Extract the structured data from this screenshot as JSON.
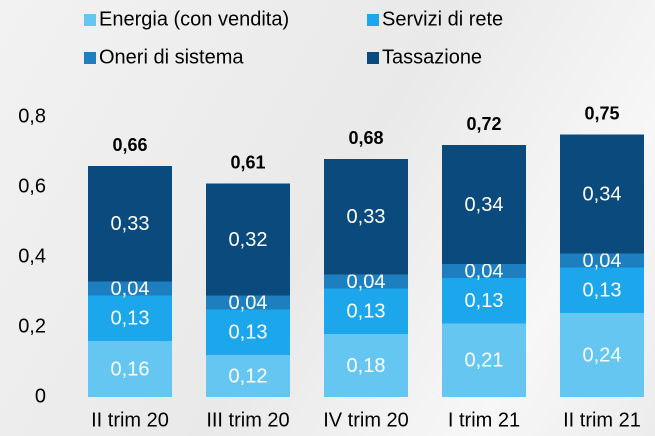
{
  "chart_data": {
    "type": "stacked_bar",
    "categories": [
      "II trim 20",
      "III trim 20",
      "IV trim 20",
      "I trim 21",
      "II trim 21"
    ],
    "series": [
      {
        "name": "Energia (con vendita)",
        "color": "#66c6f2",
        "values": [
          0.16,
          0.12,
          0.18,
          0.21,
          0.24
        ],
        "value_labels": [
          "0,16",
          "0,12",
          "0,18",
          "0,21",
          "0,24"
        ]
      },
      {
        "name": "Servizi di rete",
        "color": "#1ca7ec",
        "values": [
          0.13,
          0.13,
          0.13,
          0.13,
          0.13
        ],
        "value_labels": [
          "0,13",
          "0,13",
          "0,13",
          "0,13",
          "0,13"
        ]
      },
      {
        "name": "Oneri di sistema",
        "color": "#1e7fc0",
        "values": [
          0.04,
          0.04,
          0.04,
          0.04,
          0.04
        ],
        "value_labels": [
          "0,04",
          "0,04",
          "0,04",
          "0,04",
          "0,04"
        ]
      },
      {
        "name": "Tassazione",
        "color": "#0b4a7c",
        "values": [
          0.33,
          0.32,
          0.33,
          0.34,
          0.34
        ],
        "value_labels": [
          "0,33",
          "0,32",
          "0,33",
          "0,34",
          "0,34"
        ]
      }
    ],
    "totals": [
      0.66,
      0.61,
      0.68,
      0.72,
      0.75
    ],
    "total_labels": [
      "0,66",
      "0,61",
      "0,68",
      "0,72",
      "0,75"
    ],
    "ylim": [
      0,
      0.8
    ],
    "yticks": [
      0,
      {
        "value": 0.2,
        "label": "0,2"
      },
      {
        "value": 0.4,
        "label": "0,4"
      },
      {
        "value": 0.6,
        "label": "0,6"
      },
      {
        "value": 0.8,
        "label": "0,8"
      }
    ]
  }
}
